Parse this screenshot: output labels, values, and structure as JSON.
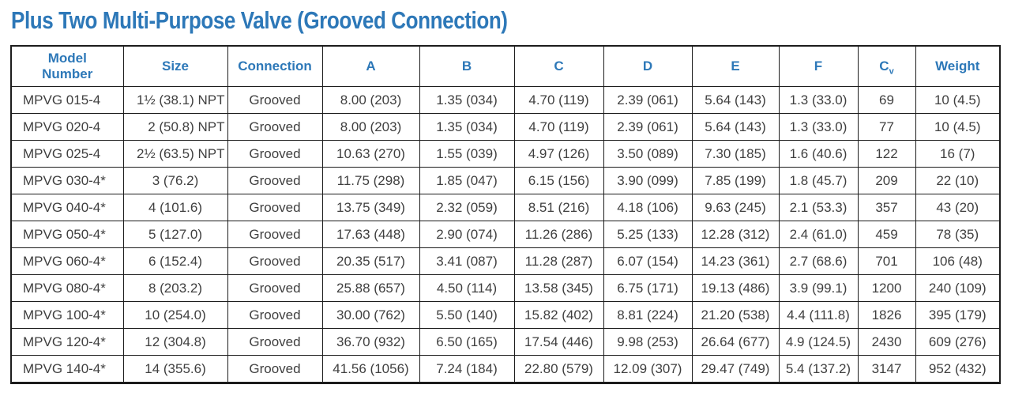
{
  "title": "Plus Two Multi-Purpose Valve (Grooved Connection)",
  "colors": {
    "accent_blue": "#2d78b8",
    "border": "#1c1c1c",
    "body_text": "#3f3f3f"
  },
  "table": {
    "columns": [
      {
        "id": "model",
        "label": "Model\nNumber"
      },
      {
        "id": "size",
        "label": "Size"
      },
      {
        "id": "connection",
        "label": "Connection"
      },
      {
        "id": "a",
        "label": "A"
      },
      {
        "id": "b",
        "label": "B"
      },
      {
        "id": "c",
        "label": "C"
      },
      {
        "id": "d",
        "label": "D"
      },
      {
        "id": "e",
        "label": "E"
      },
      {
        "id": "f",
        "label": "F"
      },
      {
        "id": "cv",
        "label": "C",
        "subscript": "v"
      },
      {
        "id": "weight",
        "label": "Weight"
      }
    ],
    "rows": [
      [
        "MPVG 015-4",
        "1½ (38.1) NPT",
        "Grooved",
        "8.00 (203)",
        "1.35 (034)",
        "4.70 (119)",
        "2.39 (061)",
        "5.64 (143)",
        "1.3 (33.0)",
        "69",
        "10 (4.5)"
      ],
      [
        "MPVG 020-4",
        "2 (50.8) NPT",
        "Grooved",
        "8.00 (203)",
        "1.35 (034)",
        "4.70 (119)",
        "2.39 (061)",
        "5.64 (143)",
        "1.3 (33.0)",
        "77",
        "10 (4.5)"
      ],
      [
        "MPVG 025-4",
        "2½ (63.5) NPT",
        "Grooved",
        "10.63 (270)",
        "1.55 (039)",
        "4.97 (126)",
        "3.50 (089)",
        "7.30 (185)",
        "1.6 (40.6)",
        "122",
        "16 (7)"
      ],
      [
        "MPVG 030-4*",
        "3 (76.2)",
        "Grooved",
        "11.75 (298)",
        "1.85 (047)",
        "6.15 (156)",
        "3.90 (099)",
        "7.85 (199)",
        "1.8 (45.7)",
        "209",
        "22 (10)"
      ],
      [
        "MPVG 040-4*",
        "4 (101.6)",
        "Grooved",
        "13.75 (349)",
        "2.32 (059)",
        "8.51 (216)",
        "4.18 (106)",
        "9.63 (245)",
        "2.1 (53.3)",
        "357",
        "43 (20)"
      ],
      [
        "MPVG 050-4*",
        "5 (127.0)",
        "Grooved",
        "17.63 (448)",
        "2.90 (074)",
        "11.26 (286)",
        "5.25 (133)",
        "12.28 (312)",
        "2.4 (61.0)",
        "459",
        "78 (35)"
      ],
      [
        "MPVG 060-4*",
        "6 (152.4)",
        "Grooved",
        "20.35 (517)",
        "3.41 (087)",
        "11.28 (287)",
        "6.07 (154)",
        "14.23 (361)",
        "2.7 (68.6)",
        "701",
        "106 (48)"
      ],
      [
        "MPVG 080-4*",
        "8 (203.2)",
        "Grooved",
        "25.88 (657)",
        "4.50 (114)",
        "13.58 (345)",
        "6.75 (171)",
        "19.13 (486)",
        "3.9 (99.1)",
        "1200",
        "240 (109)"
      ],
      [
        "MPVG 100-4*",
        "10 (254.0)",
        "Grooved",
        "30.00 (762)",
        "5.50 (140)",
        "15.82 (402)",
        "8.81 (224)",
        "21.20 (538)",
        "4.4 (111.8)",
        "1826",
        "395 (179)"
      ],
      [
        "MPVG 120-4*",
        "12 (304.8)",
        "Grooved",
        "36.70 (932)",
        "6.50 (165)",
        "17.54 (446)",
        "9.98 (253)",
        "26.64 (677)",
        "4.9 (124.5)",
        "2430",
        "609 (276)"
      ],
      [
        "MPVG 140-4*",
        "14 (355.6)",
        "Grooved",
        "41.56 (1056)",
        "7.24 (184)",
        "22.80 (579)",
        "12.09 (307)",
        "29.47 (749)",
        "5.4 (137.2)",
        "3147",
        "952 (432)"
      ]
    ]
  }
}
